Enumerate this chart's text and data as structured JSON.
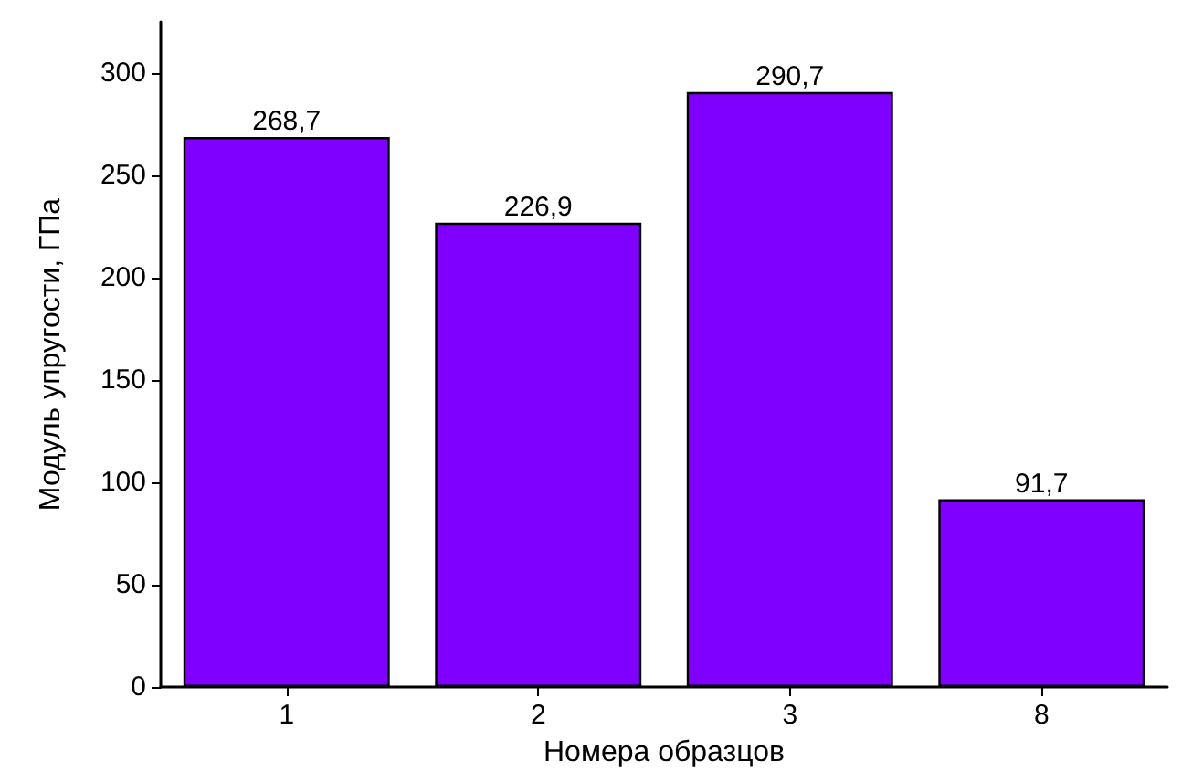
{
  "chart_data": {
    "type": "bar",
    "xlabel": "Номера образцов",
    "ylabel": "Модуль упругости, ГПа",
    "categories": [
      "1",
      "2",
      "3",
      "8"
    ],
    "values": [
      268.7,
      226.9,
      290.7,
      91.7
    ],
    "value_labels": [
      "268,7",
      "226,9",
      "290,7",
      "91,7"
    ],
    "color": "#8000ff",
    "ylim": [
      0,
      325
    ],
    "yticks": [
      0,
      50,
      100,
      150,
      200,
      250,
      300
    ],
    "grid": false
  }
}
